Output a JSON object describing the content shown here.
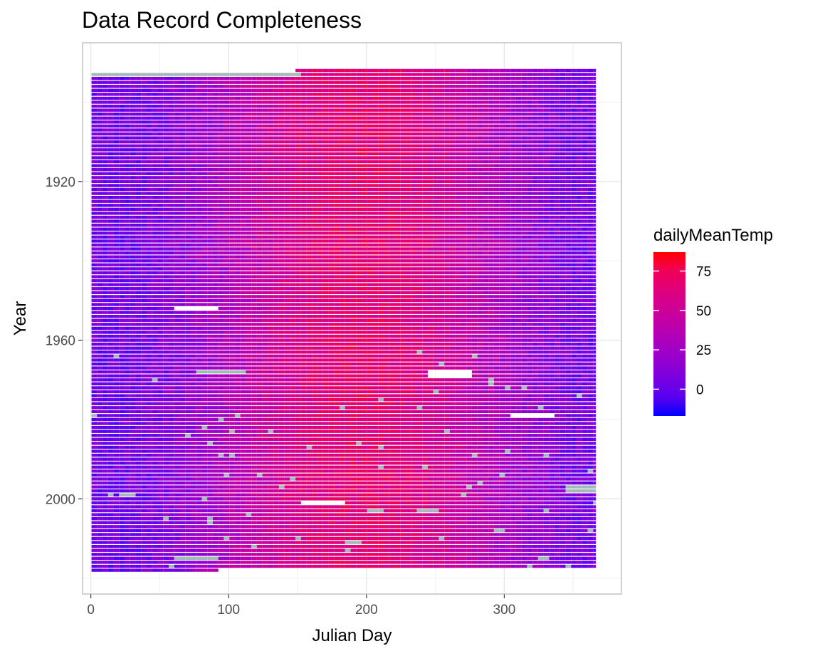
{
  "chart_data": {
    "type": "heatmap",
    "title": "Data Record Completeness",
    "xlabel": "Julian Day",
    "ylabel": "Year",
    "xlim": [
      -6,
      385
    ],
    "ylim": [
      1885,
      2024
    ],
    "x_ticks": [
      0,
      100,
      200,
      300
    ],
    "y_ticks": [
      1920,
      1960,
      2000
    ],
    "y_reversed": true,
    "x_range": [
      1,
      366
    ],
    "year_range": [
      1892,
      2018
    ],
    "grid": true,
    "legend": {
      "title": "dailyMeanTemp",
      "position": "right",
      "breaks": [
        75,
        50,
        25,
        0
      ],
      "range": [
        -17,
        87
      ],
      "low_color": "#0000ff",
      "high_color": "#ff0000"
    },
    "missing_color": "#a3b8b8",
    "data_gaps": [
      {
        "year": 1952,
        "day_start": 61,
        "day_end": 91
      },
      {
        "year": 1968,
        "day_start": 245,
        "day_end": 274
      },
      {
        "year": 1969,
        "day_start": 245,
        "day_end": 274
      },
      {
        "year": 1979,
        "day_start": 305,
        "day_end": 334
      },
      {
        "year": 2001,
        "day_start": 152,
        "day_end": 181
      }
    ],
    "missing_runs": [
      {
        "year": 1968,
        "day_start": 75,
        "day_end": 112
      },
      {
        "year": 2015,
        "day_start": 61,
        "day_end": 91
      },
      {
        "year": 2003,
        "day_start": 200,
        "day_end": 212
      },
      {
        "year": 2003,
        "day_start": 237,
        "day_end": 250
      },
      {
        "year": 1997,
        "day_start": 343,
        "day_end": 365
      },
      {
        "year": 1998,
        "day_start": 343,
        "day_end": 365
      },
      {
        "year": 1999,
        "day_start": 19,
        "day_end": 30
      },
      {
        "year": 2011,
        "day_start": 182,
        "day_end": 193
      },
      {
        "year": 2008,
        "day_start": 290,
        "day_end": 300
      },
      {
        "year": 1893,
        "day_start": 1,
        "day_end": 152
      }
    ],
    "partial_years": [
      {
        "year": 1892,
        "day_start": 152,
        "day_end": 366
      },
      {
        "year": 2018,
        "day_start": 1,
        "day_end": 92
      }
    ]
  }
}
